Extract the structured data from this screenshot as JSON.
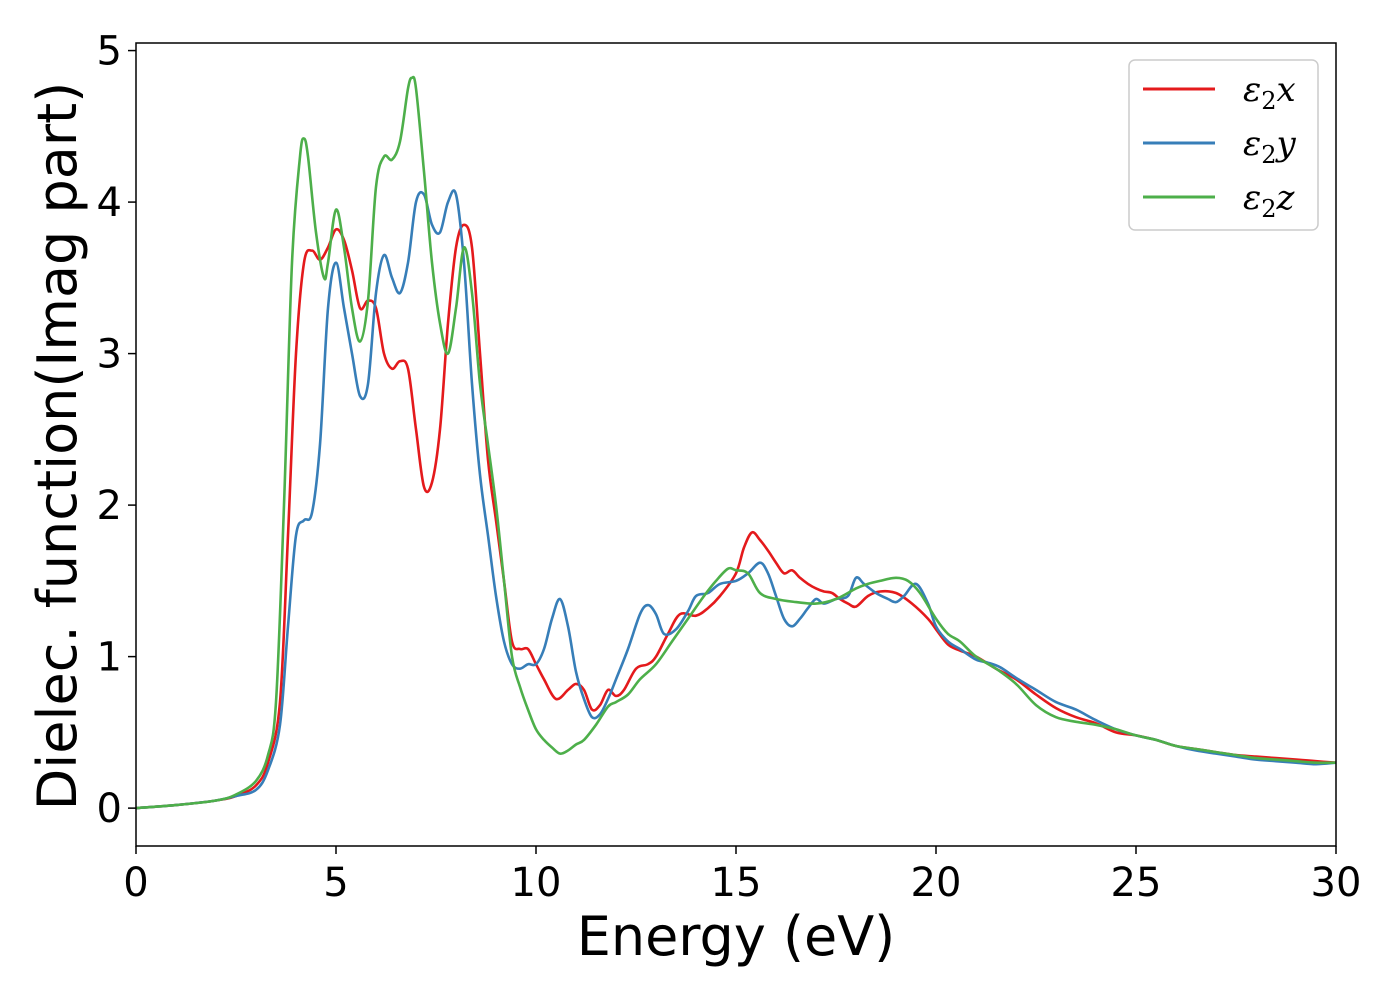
{
  "chart_data": {
    "type": "line",
    "title": "",
    "xlabel": "Energy (eV)",
    "ylabel": "Dielec. function(Imag part)",
    "xlim": [
      0,
      30
    ],
    "ylim": [
      -0.25,
      5.05
    ],
    "xticks": [
      0,
      5,
      10,
      15,
      20,
      25,
      30
    ],
    "yticks": [
      0,
      1,
      2,
      3,
      4,
      5
    ],
    "grid": false,
    "legend_position": "top-right",
    "series": [
      {
        "name": "ε₂x",
        "legend_base": "ε",
        "legend_sub": "2",
        "legend_var": "x",
        "color": "#e41a1c",
        "x": [
          0,
          1,
          2,
          2.5,
          3,
          3.3,
          3.6,
          3.8,
          4.0,
          4.2,
          4.4,
          4.6,
          4.8,
          5.0,
          5.2,
          5.4,
          5.6,
          5.8,
          6.0,
          6.2,
          6.4,
          6.6,
          6.8,
          7.0,
          7.2,
          7.4,
          7.6,
          7.8,
          8.0,
          8.2,
          8.4,
          8.6,
          8.8,
          9.0,
          9.2,
          9.4,
          9.6,
          9.8,
          10.0,
          10.2,
          10.5,
          10.8,
          11.0,
          11.2,
          11.4,
          11.6,
          11.8,
          12.0,
          12.2,
          12.5,
          12.8,
          13.0,
          13.3,
          13.6,
          14.0,
          14.3,
          14.6,
          15.0,
          15.2,
          15.4,
          15.6,
          15.8,
          16.0,
          16.2,
          16.4,
          16.6,
          16.8,
          17.0,
          17.2,
          17.4,
          17.6,
          17.8,
          18.0,
          18.3,
          18.6,
          19.0,
          19.4,
          19.8,
          20.0,
          20.3,
          20.6,
          21.0,
          21.5,
          22.0,
          22.5,
          23.0,
          23.5,
          24.0,
          24.5,
          25.0,
          25.5,
          26.0,
          26.5,
          27.0,
          27.5,
          28.0,
          28.5,
          29.0,
          29.5,
          30.0
        ],
        "y": [
          0.0,
          0.02,
          0.05,
          0.08,
          0.15,
          0.3,
          0.7,
          1.8,
          3.0,
          3.6,
          3.68,
          3.62,
          3.7,
          3.82,
          3.75,
          3.55,
          3.3,
          3.35,
          3.3,
          3.0,
          2.9,
          2.95,
          2.9,
          2.5,
          2.12,
          2.15,
          2.5,
          3.2,
          3.7,
          3.85,
          3.7,
          3.0,
          2.3,
          1.9,
          1.5,
          1.1,
          1.05,
          1.05,
          0.95,
          0.85,
          0.72,
          0.78,
          0.82,
          0.78,
          0.65,
          0.68,
          0.78,
          0.74,
          0.78,
          0.92,
          0.95,
          1.0,
          1.15,
          1.28,
          1.27,
          1.32,
          1.4,
          1.55,
          1.72,
          1.82,
          1.77,
          1.7,
          1.62,
          1.55,
          1.57,
          1.52,
          1.48,
          1.45,
          1.43,
          1.42,
          1.38,
          1.35,
          1.33,
          1.4,
          1.43,
          1.42,
          1.35,
          1.25,
          1.18,
          1.08,
          1.04,
          1.0,
          0.92,
          0.85,
          0.75,
          0.66,
          0.6,
          0.56,
          0.5,
          0.48,
          0.45,
          0.41,
          0.39,
          0.37,
          0.35,
          0.34,
          0.33,
          0.32,
          0.31,
          0.3
        ]
      },
      {
        "name": "ε₂y",
        "legend_base": "ε",
        "legend_sub": "2",
        "legend_var": "y",
        "color": "#377eb8",
        "x": [
          0,
          1,
          2,
          2.5,
          3,
          3.3,
          3.6,
          3.8,
          4.0,
          4.2,
          4.4,
          4.6,
          4.8,
          5.0,
          5.2,
          5.4,
          5.6,
          5.8,
          6.0,
          6.2,
          6.4,
          6.6,
          6.8,
          7.0,
          7.2,
          7.4,
          7.6,
          7.8,
          8.0,
          8.2,
          8.4,
          8.6,
          8.8,
          9.0,
          9.2,
          9.4,
          9.6,
          9.8,
          10.0,
          10.2,
          10.4,
          10.6,
          10.8,
          11.0,
          11.2,
          11.4,
          11.6,
          11.8,
          12.0,
          12.3,
          12.6,
          12.8,
          13.0,
          13.2,
          13.5,
          13.8,
          14.0,
          14.3,
          14.6,
          15.0,
          15.3,
          15.6,
          15.8,
          16.0,
          16.2,
          16.4,
          16.6,
          16.8,
          17.0,
          17.2,
          17.5,
          17.8,
          18.0,
          18.2,
          18.5,
          18.8,
          19.0,
          19.2,
          19.5,
          19.8,
          20.0,
          20.3,
          20.6,
          21.0,
          21.3,
          21.6,
          22.0,
          22.5,
          23.0,
          23.5,
          24.0,
          24.5,
          25.0,
          25.5,
          26.0,
          26.5,
          27.0,
          27.5,
          28.0,
          28.5,
          29.0,
          29.5,
          30.0
        ],
        "y": [
          0.0,
          0.02,
          0.05,
          0.08,
          0.12,
          0.25,
          0.55,
          1.2,
          1.8,
          1.9,
          1.95,
          2.4,
          3.3,
          3.6,
          3.3,
          3.0,
          2.72,
          2.8,
          3.4,
          3.65,
          3.5,
          3.4,
          3.6,
          4.0,
          4.05,
          3.85,
          3.8,
          4.0,
          4.05,
          3.6,
          2.8,
          2.2,
          1.8,
          1.4,
          1.1,
          0.95,
          0.92,
          0.95,
          0.95,
          1.05,
          1.25,
          1.38,
          1.2,
          0.9,
          0.72,
          0.6,
          0.62,
          0.72,
          0.85,
          1.05,
          1.28,
          1.34,
          1.28,
          1.15,
          1.18,
          1.3,
          1.4,
          1.42,
          1.48,
          1.5,
          1.55,
          1.62,
          1.55,
          1.4,
          1.25,
          1.2,
          1.25,
          1.32,
          1.38,
          1.35,
          1.38,
          1.4,
          1.52,
          1.48,
          1.42,
          1.38,
          1.36,
          1.4,
          1.48,
          1.35,
          1.2,
          1.1,
          1.05,
          0.98,
          0.96,
          0.93,
          0.86,
          0.78,
          0.7,
          0.65,
          0.58,
          0.52,
          0.48,
          0.45,
          0.41,
          0.38,
          0.36,
          0.34,
          0.32,
          0.31,
          0.3,
          0.29,
          0.3
        ]
      },
      {
        "name": "ε₂z",
        "legend_base": "ε",
        "legend_sub": "2",
        "legend_var": "z",
        "color": "#4daf4a",
        "x": [
          0,
          1,
          2,
          2.5,
          3,
          3.3,
          3.5,
          3.7,
          3.9,
          4.1,
          4.2,
          4.3,
          4.5,
          4.7,
          4.8,
          5.0,
          5.2,
          5.4,
          5.6,
          5.8,
          6.0,
          6.2,
          6.4,
          6.6,
          6.8,
          6.9,
          7.0,
          7.2,
          7.4,
          7.6,
          7.8,
          8.0,
          8.2,
          8.4,
          8.6,
          8.8,
          9.0,
          9.2,
          9.4,
          9.6,
          9.8,
          10.0,
          10.2,
          10.4,
          10.6,
          10.8,
          11.0,
          11.2,
          11.5,
          11.8,
          12.0,
          12.3,
          12.6,
          13.0,
          13.4,
          13.8,
          14.2,
          14.5,
          14.8,
          15.0,
          15.3,
          15.6,
          16.0,
          16.5,
          17.0,
          17.5,
          18.0,
          18.3,
          18.6,
          19.0,
          19.3,
          19.6,
          20.0,
          20.3,
          20.6,
          21.0,
          21.5,
          22.0,
          22.5,
          23.0,
          23.5,
          24.0,
          24.5,
          25.0,
          25.5,
          26.0,
          26.5,
          27.0,
          27.5,
          28.0,
          28.5,
          29.0,
          29.5,
          30.0
        ],
        "y": [
          0.0,
          0.02,
          0.05,
          0.09,
          0.18,
          0.35,
          0.7,
          2.0,
          3.6,
          4.3,
          4.42,
          4.3,
          3.8,
          3.5,
          3.6,
          3.95,
          3.7,
          3.3,
          3.08,
          3.35,
          4.1,
          4.3,
          4.28,
          4.4,
          4.75,
          4.82,
          4.75,
          4.2,
          3.6,
          3.2,
          3.0,
          3.3,
          3.7,
          3.4,
          2.8,
          2.4,
          2.0,
          1.5,
          1.0,
          0.8,
          0.65,
          0.52,
          0.45,
          0.4,
          0.36,
          0.38,
          0.42,
          0.45,
          0.55,
          0.67,
          0.7,
          0.75,
          0.85,
          0.95,
          1.1,
          1.25,
          1.4,
          1.5,
          1.58,
          1.57,
          1.55,
          1.42,
          1.38,
          1.36,
          1.35,
          1.38,
          1.45,
          1.48,
          1.5,
          1.52,
          1.5,
          1.42,
          1.25,
          1.15,
          1.1,
          1.0,
          0.92,
          0.82,
          0.68,
          0.6,
          0.57,
          0.55,
          0.52,
          0.48,
          0.45,
          0.41,
          0.39,
          0.37,
          0.35,
          0.33,
          0.32,
          0.31,
          0.3,
          0.3
        ]
      }
    ]
  }
}
